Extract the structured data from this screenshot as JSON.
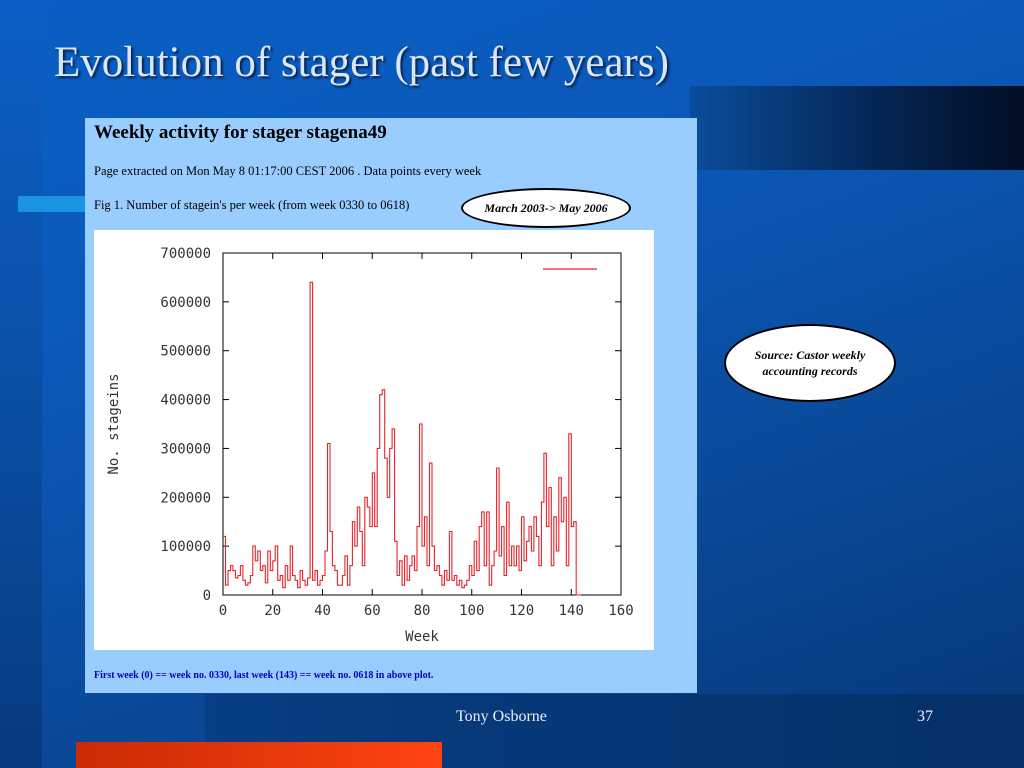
{
  "slide": {
    "title": "Evolution of stager (past few years)",
    "author": "Tony Osborne",
    "page_number": "37"
  },
  "panel": {
    "heading": "Weekly activity for stager stagena49",
    "subtitle": "Page extracted on Mon May 8 01:17:00 CEST 2006 . Data points every week",
    "fig_caption": "Fig 1. Number of stagein's per week (from week 0330 to 0618)",
    "footer_note": "First week (0) == week no. 0330, last week (143) == week no. 0618 in above plot."
  },
  "callouts": {
    "range": "March 2003-> May 2006",
    "source_line1": "Source: Castor weekly",
    "source_line2": "accounting records"
  },
  "colors": {
    "series": "#e8232a",
    "panel_bg": "#99ccff"
  },
  "chart_data": {
    "type": "line",
    "xlabel": "Week",
    "ylabel": "No. stageins",
    "xlim": [
      0,
      160
    ],
    "ylim": [
      0,
      700000
    ],
    "x_ticks": [
      "0",
      "20",
      "40",
      "60",
      "80",
      "100",
      "120",
      "140",
      "160"
    ],
    "y_ticks": [
      "0",
      "100000",
      "200000",
      "300000",
      "400000",
      "500000",
      "600000",
      "700000"
    ],
    "grid": false,
    "legend": "top-right",
    "series": [
      {
        "values": [
          120000,
          20000,
          50000,
          60000,
          50000,
          35000,
          40000,
          60000,
          30000,
          20000,
          25000,
          40000,
          100000,
          70000,
          90000,
          50000,
          60000,
          25000,
          90000,
          50000,
          70000,
          100000,
          30000,
          40000,
          15000,
          60000,
          30000,
          100000,
          40000,
          30000,
          15000,
          50000,
          30000,
          20000,
          35000,
          640000,
          30000,
          50000,
          20000,
          30000,
          40000,
          90000,
          310000,
          130000,
          60000,
          50000,
          20000,
          20000,
          40000,
          80000,
          20000,
          60000,
          150000,
          100000,
          180000,
          130000,
          60000,
          200000,
          180000,
          140000,
          250000,
          140000,
          300000,
          410000,
          420000,
          280000,
          200000,
          300000,
          340000,
          110000,
          40000,
          70000,
          20000,
          80000,
          30000,
          60000,
          80000,
          50000,
          140000,
          350000,
          100000,
          160000,
          60000,
          270000,
          100000,
          50000,
          60000,
          40000,
          20000,
          50000,
          30000,
          130000,
          30000,
          40000,
          20000,
          30000,
          15000,
          20000,
          30000,
          60000,
          40000,
          110000,
          50000,
          140000,
          170000,
          60000,
          170000,
          20000,
          60000,
          90000,
          260000,
          80000,
          140000,
          40000,
          190000,
          60000,
          100000,
          60000,
          100000,
          50000,
          160000,
          70000,
          110000,
          140000,
          90000,
          160000,
          120000,
          60000,
          190000,
          290000,
          140000,
          220000,
          60000,
          160000,
          90000,
          240000,
          150000,
          200000,
          60000,
          330000,
          140000,
          150000,
          0,
          0
        ]
      }
    ]
  }
}
